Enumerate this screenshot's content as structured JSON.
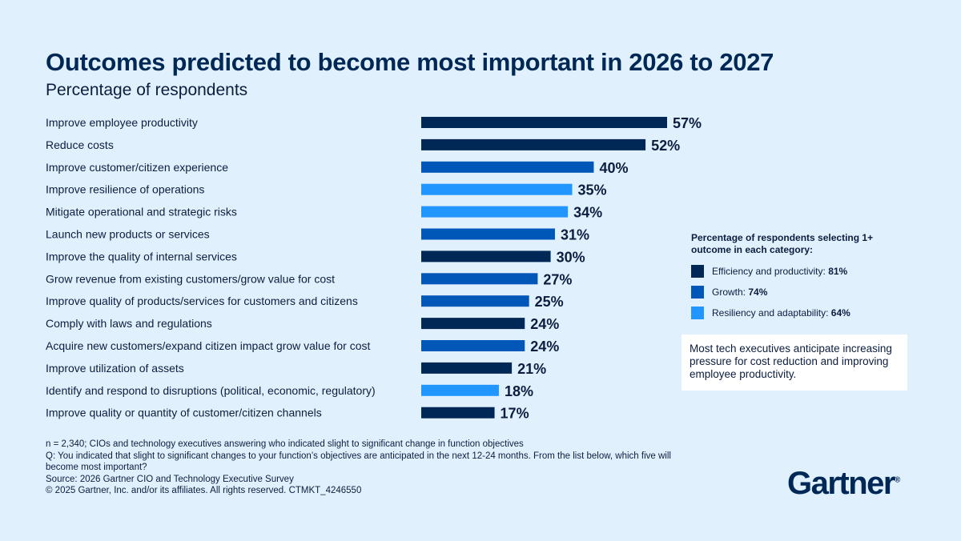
{
  "title": "Outcomes predicted to become most important in 2026 to 2027",
  "subtitle": "Percentage of respondents",
  "colors": {
    "efficiency": "#002856",
    "growth": "#0057b7",
    "resiliency": "#2196ff",
    "background": "#e1f0fd"
  },
  "chart_data": {
    "type": "bar",
    "orientation": "horizontal",
    "title": "Outcomes predicted to become most important in 2026 to 2027",
    "subtitle": "Percentage of respondents",
    "categories": [
      "Improve employee productivity",
      "Reduce costs",
      "Improve customer/citizen experience",
      "Improve resilience of operations",
      "Mitigate operational and strategic risks",
      "Launch new products or services",
      "Improve the quality of internal services",
      "Grow revenue from existing customers/grow value for cost",
      "Improve quality of products/services for customers and citizens",
      "Comply with laws and regulations",
      "Acquire new customers/expand citizen impact grow value for cost",
      "Improve utilization of assets",
      "Identify and respond to disruptions (political, economic, regulatory)",
      "Improve quality or quantity of customer/citizen channels"
    ],
    "values": [
      57,
      52,
      40,
      35,
      34,
      31,
      30,
      27,
      25,
      24,
      24,
      21,
      18,
      17
    ],
    "labels": [
      "57%",
      "52%",
      "40%",
      "35%",
      "34%",
      "31%",
      "30%",
      "27%",
      "25%",
      "24%",
      "24%",
      "21%",
      "18%",
      "17%"
    ],
    "groups": [
      "efficiency",
      "efficiency",
      "growth",
      "resiliency",
      "resiliency",
      "growth",
      "efficiency",
      "growth",
      "growth",
      "efficiency",
      "growth",
      "efficiency",
      "resiliency",
      "efficiency"
    ],
    "xlim": [
      0,
      100
    ],
    "grid": false
  },
  "legend": {
    "heading": "Percentage of respondents selecting 1+ outcome in each category:",
    "items": [
      {
        "key": "efficiency",
        "label": "Efficiency and productivity: ",
        "value": "81%"
      },
      {
        "key": "growth",
        "label": "Growth: ",
        "value": "74%"
      },
      {
        "key": "resiliency",
        "label": "Resiliency and adaptability: ",
        "value": "64%"
      }
    ]
  },
  "note": "Most tech executives anticipate increasing pressure for cost reduction and improving employee productivity.",
  "footnotes": [
    "n = 2,340; CIOs and technology executives answering who indicated slight to significant change in function objectives",
    "Q: You indicated that slight to significant changes to your function’s objectives are anticipated in the next 12-24 months. From the list below, which five will become most important?",
    "Source: 2026 Gartner CIO and Technology Executive Survey",
    "© 2025 Gartner, Inc. and/or its affiliates. All rights reserved. CTMKT_4246550"
  ],
  "logo": "Gartner"
}
